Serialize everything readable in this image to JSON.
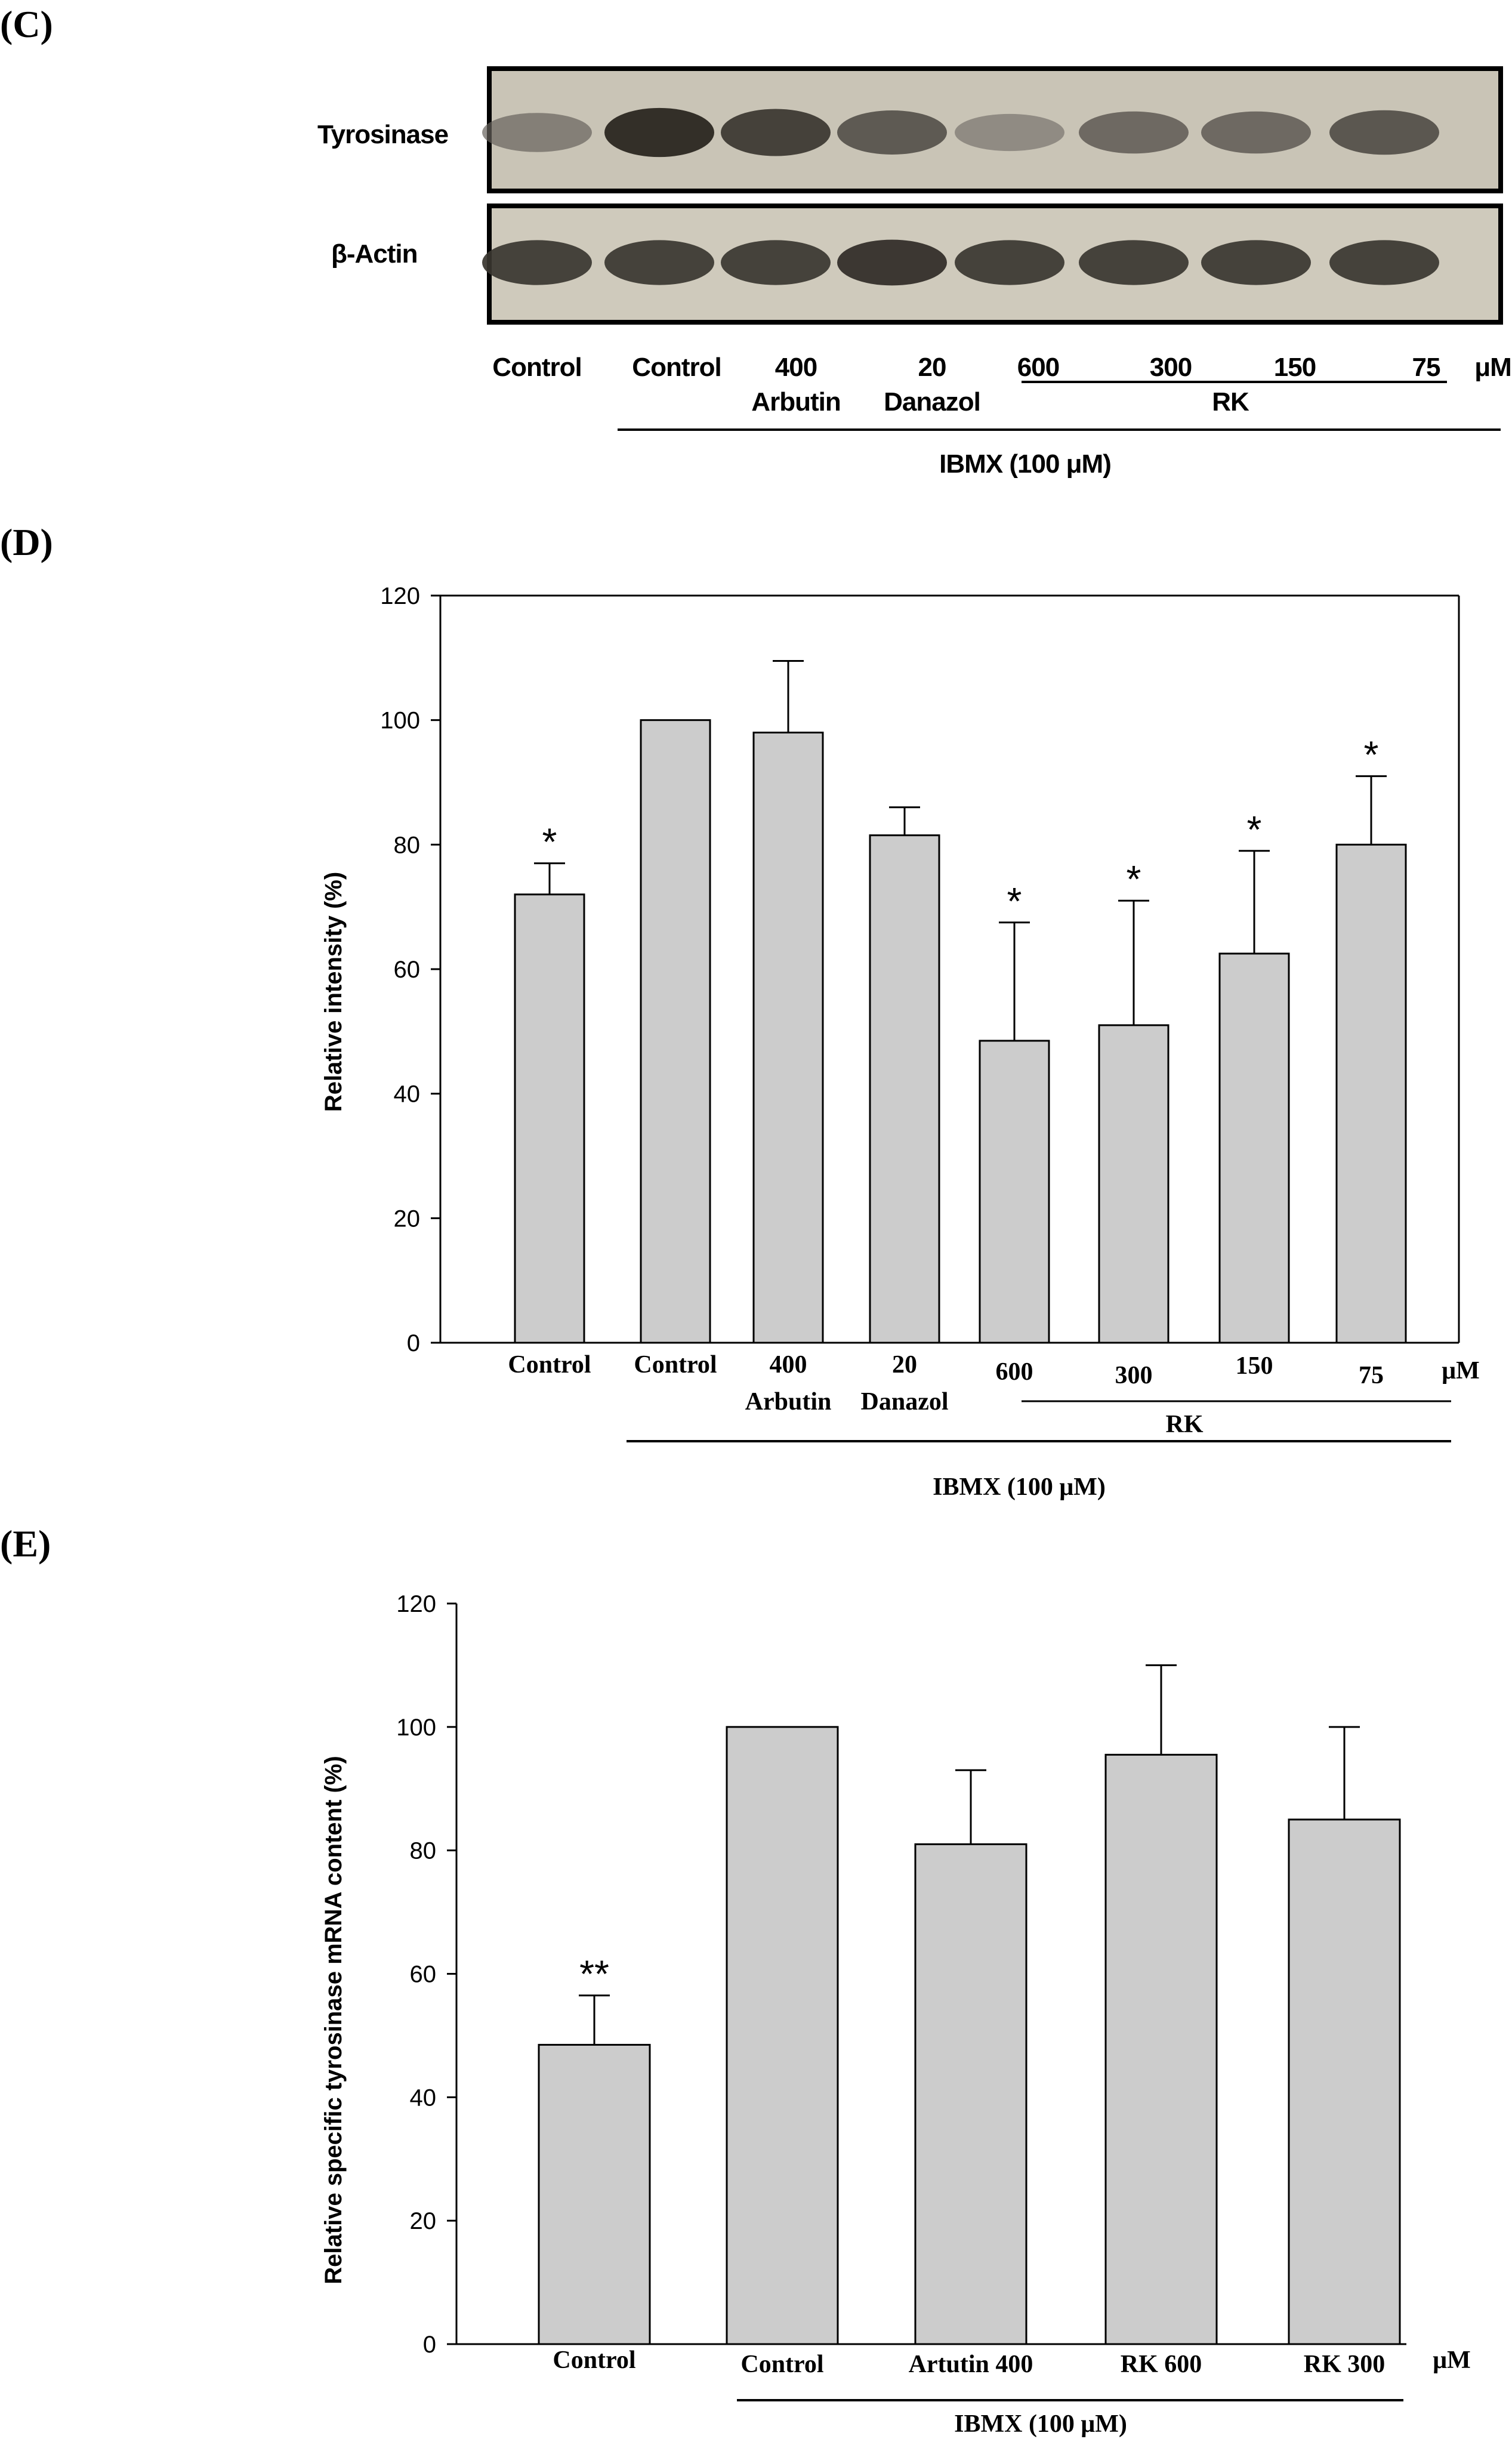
{
  "panels": {
    "c_label": "(C)",
    "d_label": "(D)",
    "e_label": "(E)"
  },
  "blot": {
    "rows": [
      "Tyrosinase",
      "β-Actin"
    ],
    "band_intensity": {
      "Tyrosinase": [
        0.45,
        0.95,
        0.85,
        0.7,
        0.35,
        0.6,
        0.6,
        0.72
      ],
      "β-Actin": [
        0.85,
        0.85,
        0.85,
        0.9,
        0.85,
        0.85,
        0.85,
        0.85
      ]
    },
    "lanes": [
      {
        "top": "Control",
        "bottom": ""
      },
      {
        "top": "Control",
        "bottom": ""
      },
      {
        "top": "400",
        "bottom": "Arbutin"
      },
      {
        "top": "20",
        "bottom": "Danazol"
      },
      {
        "top": "600",
        "bottom": ""
      },
      {
        "top": "300",
        "bottom": ""
      },
      {
        "top": "150",
        "bottom": ""
      },
      {
        "top": "75",
        "bottom": ""
      }
    ],
    "unit": "μM",
    "rk_label": "RK",
    "ibmx_label": "IBMX (100 μM)"
  },
  "chart_data": [
    {
      "panel": "D",
      "type": "bar",
      "title": "",
      "ylabel": "Relative intensity (%)",
      "ylim": [
        0,
        120
      ],
      "yticks": [
        0,
        20,
        40,
        60,
        80,
        100,
        120
      ],
      "categories": [
        "Control",
        "Control",
        "400 Arbutin",
        "20 Danazol",
        "600",
        "300",
        "150",
        "75"
      ],
      "cat_top": [
        "Control",
        "Control",
        "400",
        "20",
        "600",
        "300",
        "150",
        "75"
      ],
      "cat_bottom": [
        "",
        "",
        "Arbutin",
        "Danazol",
        "",
        "",
        "",
        ""
      ],
      "values": [
        72,
        100,
        98,
        81.5,
        48.5,
        51,
        62.5,
        80
      ],
      "errors": [
        5,
        0,
        11.5,
        4.5,
        19,
        20,
        16.5,
        11
      ],
      "significance": [
        "*",
        "",
        "",
        "",
        "*",
        "*",
        "*",
        "*"
      ],
      "unit": "μM",
      "rk_label": "RK",
      "ibmx_label": "IBMX (100 μM)",
      "bar_color": "#cccccc"
    },
    {
      "panel": "E",
      "type": "bar",
      "title": "",
      "ylabel": "Relative specific tyrosinase mRNA content (%)",
      "ylim": [
        0,
        120
      ],
      "yticks": [
        0,
        20,
        40,
        60,
        80,
        100,
        120
      ],
      "categories": [
        "Control",
        "Control",
        "Artutin 400",
        "RK 600",
        "RK 300"
      ],
      "values": [
        48.5,
        100,
        81,
        95.5,
        85
      ],
      "errors": [
        8,
        0,
        12,
        14.5,
        15
      ],
      "significance": [
        "**",
        "",
        "",
        "",
        ""
      ],
      "unit": "μM",
      "ibmx_label": "IBMX (100 μM)",
      "bar_color": "#cccccc"
    }
  ]
}
